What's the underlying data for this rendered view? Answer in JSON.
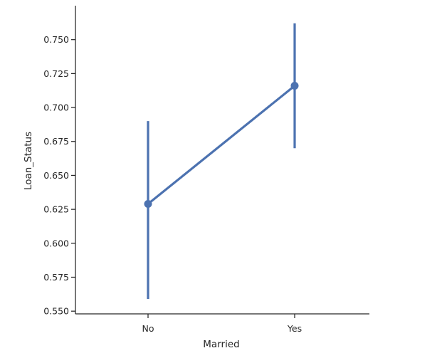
{
  "chart_data": {
    "type": "line",
    "title": "",
    "xlabel": "Married",
    "ylabel": "Loan_Status",
    "categories": [
      "No",
      "Yes"
    ],
    "values": [
      0.629,
      0.716
    ],
    "error_low": [
      0.559,
      0.67
    ],
    "error_high": [
      0.69,
      0.762
    ],
    "ylim": [
      0.548,
      0.775
    ],
    "yticks": [
      0.55,
      0.575,
      0.6,
      0.625,
      0.65,
      0.675,
      0.7,
      0.725,
      0.75
    ],
    "ytick_labels": [
      "0.550",
      "0.575",
      "0.600",
      "0.625",
      "0.650",
      "0.675",
      "0.700",
      "0.725",
      "0.750"
    ],
    "grid": false,
    "color": "#4c72b0"
  }
}
